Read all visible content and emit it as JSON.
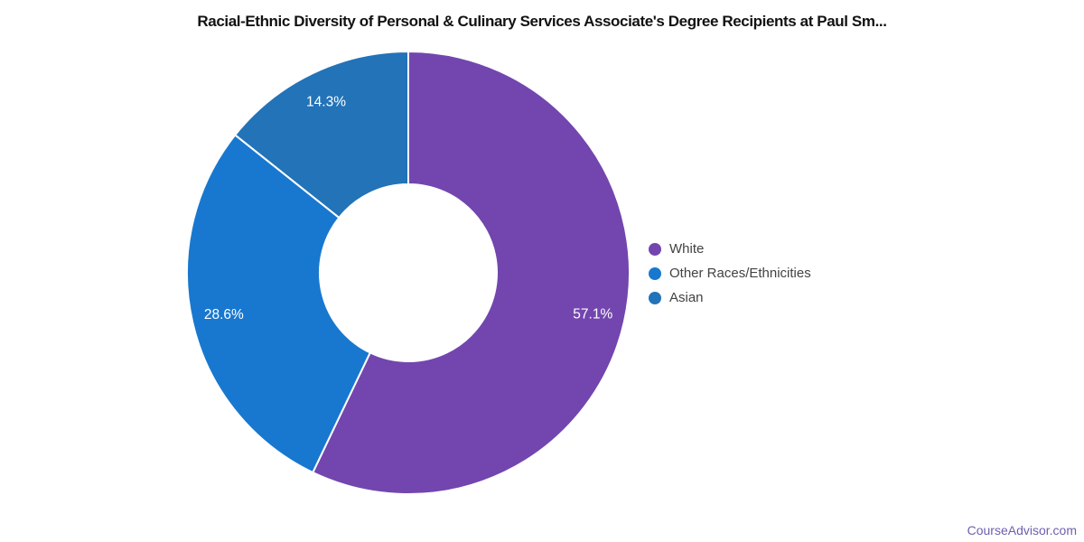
{
  "chart_data": {
    "type": "pie",
    "donut": true,
    "title": "Racial-Ethnic Diversity of Personal & Culinary Services Associate's Degree Recipients at Paul Sm...",
    "direction": "clockwise",
    "start_angle_deg": 0,
    "inner_radius_ratio": 0.4,
    "legend_position": "right",
    "data_label_color": "#ffffff",
    "series": [
      {
        "label": "White",
        "value": 57.1,
        "data_label": "57.1%",
        "color": "#7246ae"
      },
      {
        "label": "Other Races/Ethnicities",
        "value": 28.6,
        "data_label": "28.6%",
        "color": "#1878cf"
      },
      {
        "label": "Asian",
        "value": 14.3,
        "data_label": "14.3%",
        "color": "#2273b8"
      }
    ]
  },
  "footer": {
    "link_label": "CourseAdvisor.com",
    "link_color": "#6d5fae"
  },
  "page": {
    "background": "#ffffff",
    "title_color": "#121212",
    "legend_text_color": "#424242"
  }
}
